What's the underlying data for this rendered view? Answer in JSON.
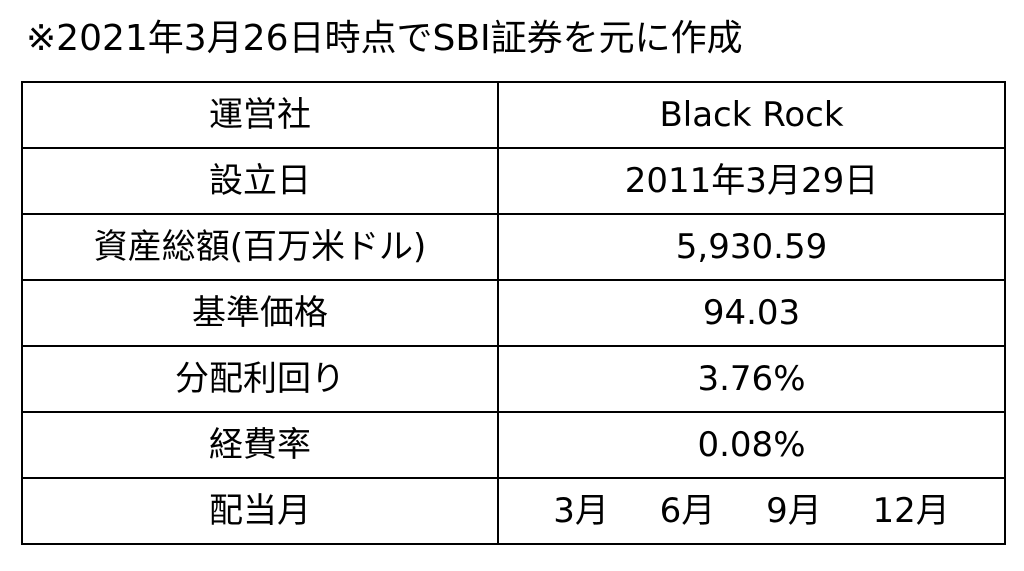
{
  "note": "※2021年3月26日時点でSBI証券を元に作成",
  "rows": [
    {
      "label": "運営社",
      "value": "Black Rock"
    },
    {
      "label": "設立日",
      "value": "2011年3月29日"
    },
    {
      "label": "資産総額(百万米ドル)",
      "value": "5,930.59"
    },
    {
      "label": "基準価格",
      "value": "94.03"
    },
    {
      "label": "分配利回り",
      "value": "3.76%"
    },
    {
      "label": "経費率",
      "value": "0.08%"
    }
  ],
  "dividend_row": {
    "label": "配当月",
    "months": [
      "3月",
      "6月",
      "9月",
      "12月"
    ]
  }
}
